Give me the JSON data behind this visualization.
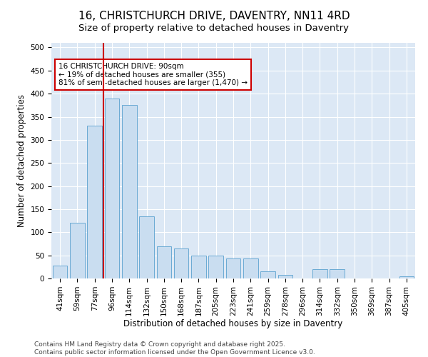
{
  "title": "16, CHRISTCHURCH DRIVE, DAVENTRY, NN11 4RD",
  "subtitle": "Size of property relative to detached houses in Daventry",
  "xlabel": "Distribution of detached houses by size in Daventry",
  "ylabel": "Number of detached properties",
  "categories": [
    "41sqm",
    "59sqm",
    "77sqm",
    "96sqm",
    "114sqm",
    "132sqm",
    "150sqm",
    "168sqm",
    "187sqm",
    "205sqm",
    "223sqm",
    "241sqm",
    "259sqm",
    "278sqm",
    "296sqm",
    "314sqm",
    "332sqm",
    "350sqm",
    "369sqm",
    "387sqm",
    "405sqm"
  ],
  "values": [
    28,
    120,
    330,
    390,
    375,
    135,
    70,
    65,
    50,
    50,
    43,
    43,
    15,
    8,
    0,
    20,
    20,
    0,
    0,
    0,
    5
  ],
  "bar_color": "#c9ddf0",
  "bar_edge_color": "#6aaad4",
  "vline_color": "#cc0000",
  "vline_xindex": 3,
  "annotation_text": "16 CHRISTCHURCH DRIVE: 90sqm\n← 19% of detached houses are smaller (355)\n81% of semi-detached houses are larger (1,470) →",
  "annotation_box_facecolor": "#ffffff",
  "annotation_box_edgecolor": "#cc0000",
  "ylim": [
    0,
    510
  ],
  "yticks": [
    0,
    50,
    100,
    150,
    200,
    250,
    300,
    350,
    400,
    450,
    500
  ],
  "plot_bg_color": "#dce8f5",
  "footer_line1": "Contains HM Land Registry data © Crown copyright and database right 2025.",
  "footer_line2": "Contains public sector information licensed under the Open Government Licence v3.0.",
  "title_fontsize": 11,
  "subtitle_fontsize": 9.5,
  "axis_label_fontsize": 8.5,
  "tick_fontsize": 7.5,
  "annotation_fontsize": 7.5,
  "footer_fontsize": 6.5
}
